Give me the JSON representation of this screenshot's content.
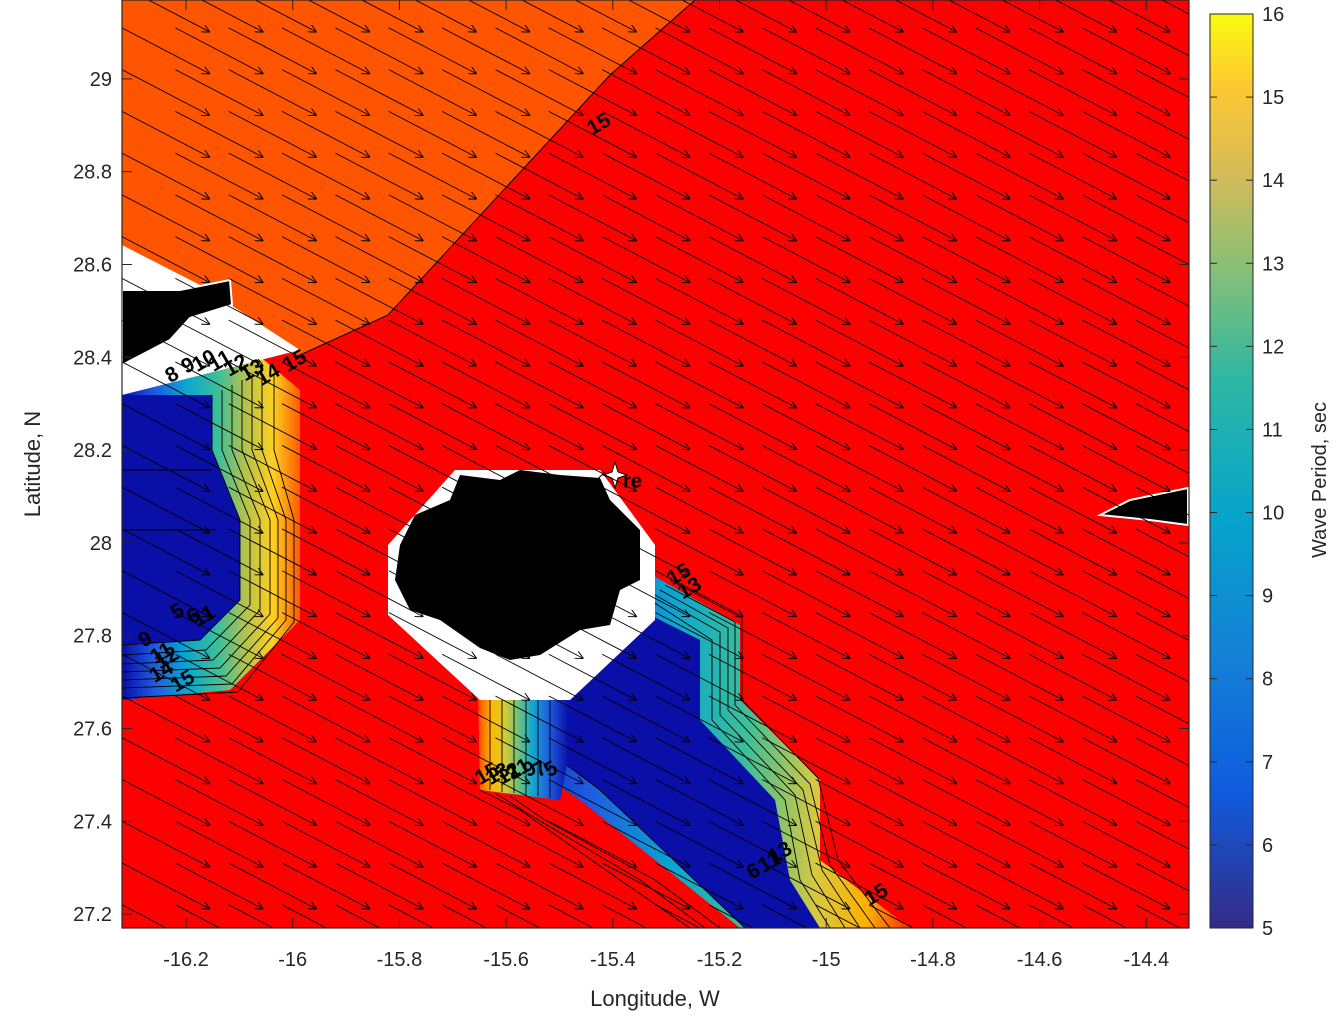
{
  "chart_data": {
    "type": "contour",
    "title": "",
    "xlabel": "Longitude, W",
    "ylabel": "Latitude, N",
    "xlim": [
      -16.32,
      -14.32
    ],
    "ylim": [
      27.17,
      29.17
    ],
    "xticks": [
      -16.2,
      -16,
      -15.8,
      -15.6,
      -15.4,
      -15.2,
      -15,
      -14.8,
      -14.6,
      -14.4
    ],
    "yticks": [
      27.2,
      27.4,
      27.6,
      27.8,
      28,
      28.2,
      28.4,
      28.6,
      28.8,
      29
    ],
    "colorbar": {
      "label": "Wave Period, sec",
      "limits": [
        5,
        16
      ],
      "ticks": [
        5,
        6,
        7,
        8,
        9,
        10,
        11,
        12,
        13,
        14,
        15,
        16
      ],
      "colormap": "parula"
    },
    "contour_levels": [
      5,
      6,
      7,
      8,
      9,
      10,
      11,
      12,
      13,
      14,
      15
    ],
    "fill_colors": {
      "high_period": "#ff0000",
      "north_period": "#ff5500",
      "low_period": "#0a0fa8",
      "land": "#000000",
      "mask": "#ffffff"
    },
    "contour_labels": [
      {
        "text": "15",
        "lon": -15.42,
        "lat": 28.89
      },
      {
        "text": "15",
        "lon": -15.99,
        "lat": 28.38
      },
      {
        "text": "8",
        "lon": -16.22,
        "lat": 28.35
      },
      {
        "text": "9",
        "lon": -16.19,
        "lat": 28.37
      },
      {
        "text": "10",
        "lon": -16.16,
        "lat": 28.38
      },
      {
        "text": "11",
        "lon": -16.13,
        "lat": 28.38
      },
      {
        "text": "12",
        "lon": -16.1,
        "lat": 28.37
      },
      {
        "text": "13",
        "lon": -16.07,
        "lat": 28.36
      },
      {
        "text": "14",
        "lon": -16.04,
        "lat": 28.35
      },
      {
        "text": "5",
        "lon": -16.21,
        "lat": 27.84
      },
      {
        "text": "6",
        "lon": -16.18,
        "lat": 27.83
      },
      {
        "text": "11",
        "lon": -16.16,
        "lat": 27.83
      },
      {
        "text": "9",
        "lon": -16.27,
        "lat": 27.78
      },
      {
        "text": "11",
        "lon": -16.24,
        "lat": 27.75
      },
      {
        "text": "12",
        "lon": -16.23,
        "lat": 27.74
      },
      {
        "text": "14",
        "lon": -16.24,
        "lat": 27.71
      },
      {
        "text": "15",
        "lon": -16.2,
        "lat": 27.69
      },
      {
        "text": "15",
        "lon": -15.27,
        "lat": 27.92
      },
      {
        "text": "13",
        "lon": -15.25,
        "lat": 27.89
      },
      {
        "text": "15",
        "lon": -15.63,
        "lat": 27.49
      },
      {
        "text": "13",
        "lon": -15.61,
        "lat": 27.49
      },
      {
        "text": "12",
        "lon": -15.59,
        "lat": 27.49
      },
      {
        "text": "11",
        "lon": -15.57,
        "lat": 27.5
      },
      {
        "text": "9",
        "lon": -15.55,
        "lat": 27.5
      },
      {
        "text": "7",
        "lon": -15.53,
        "lat": 27.5
      },
      {
        "text": "5",
        "lon": -15.51,
        "lat": 27.5
      },
      {
        "text": "6",
        "lon": -15.13,
        "lat": 27.28
      },
      {
        "text": "11",
        "lon": -15.1,
        "lat": 27.3
      },
      {
        "text": "13",
        "lon": -15.08,
        "lat": 27.32
      },
      {
        "text": "15",
        "lon": -14.9,
        "lat": 27.23
      }
    ],
    "station": {
      "label": "re",
      "lon": -15.39,
      "lat": 28.18
    },
    "vector_field": {
      "direction": "toward south-east"
    }
  }
}
